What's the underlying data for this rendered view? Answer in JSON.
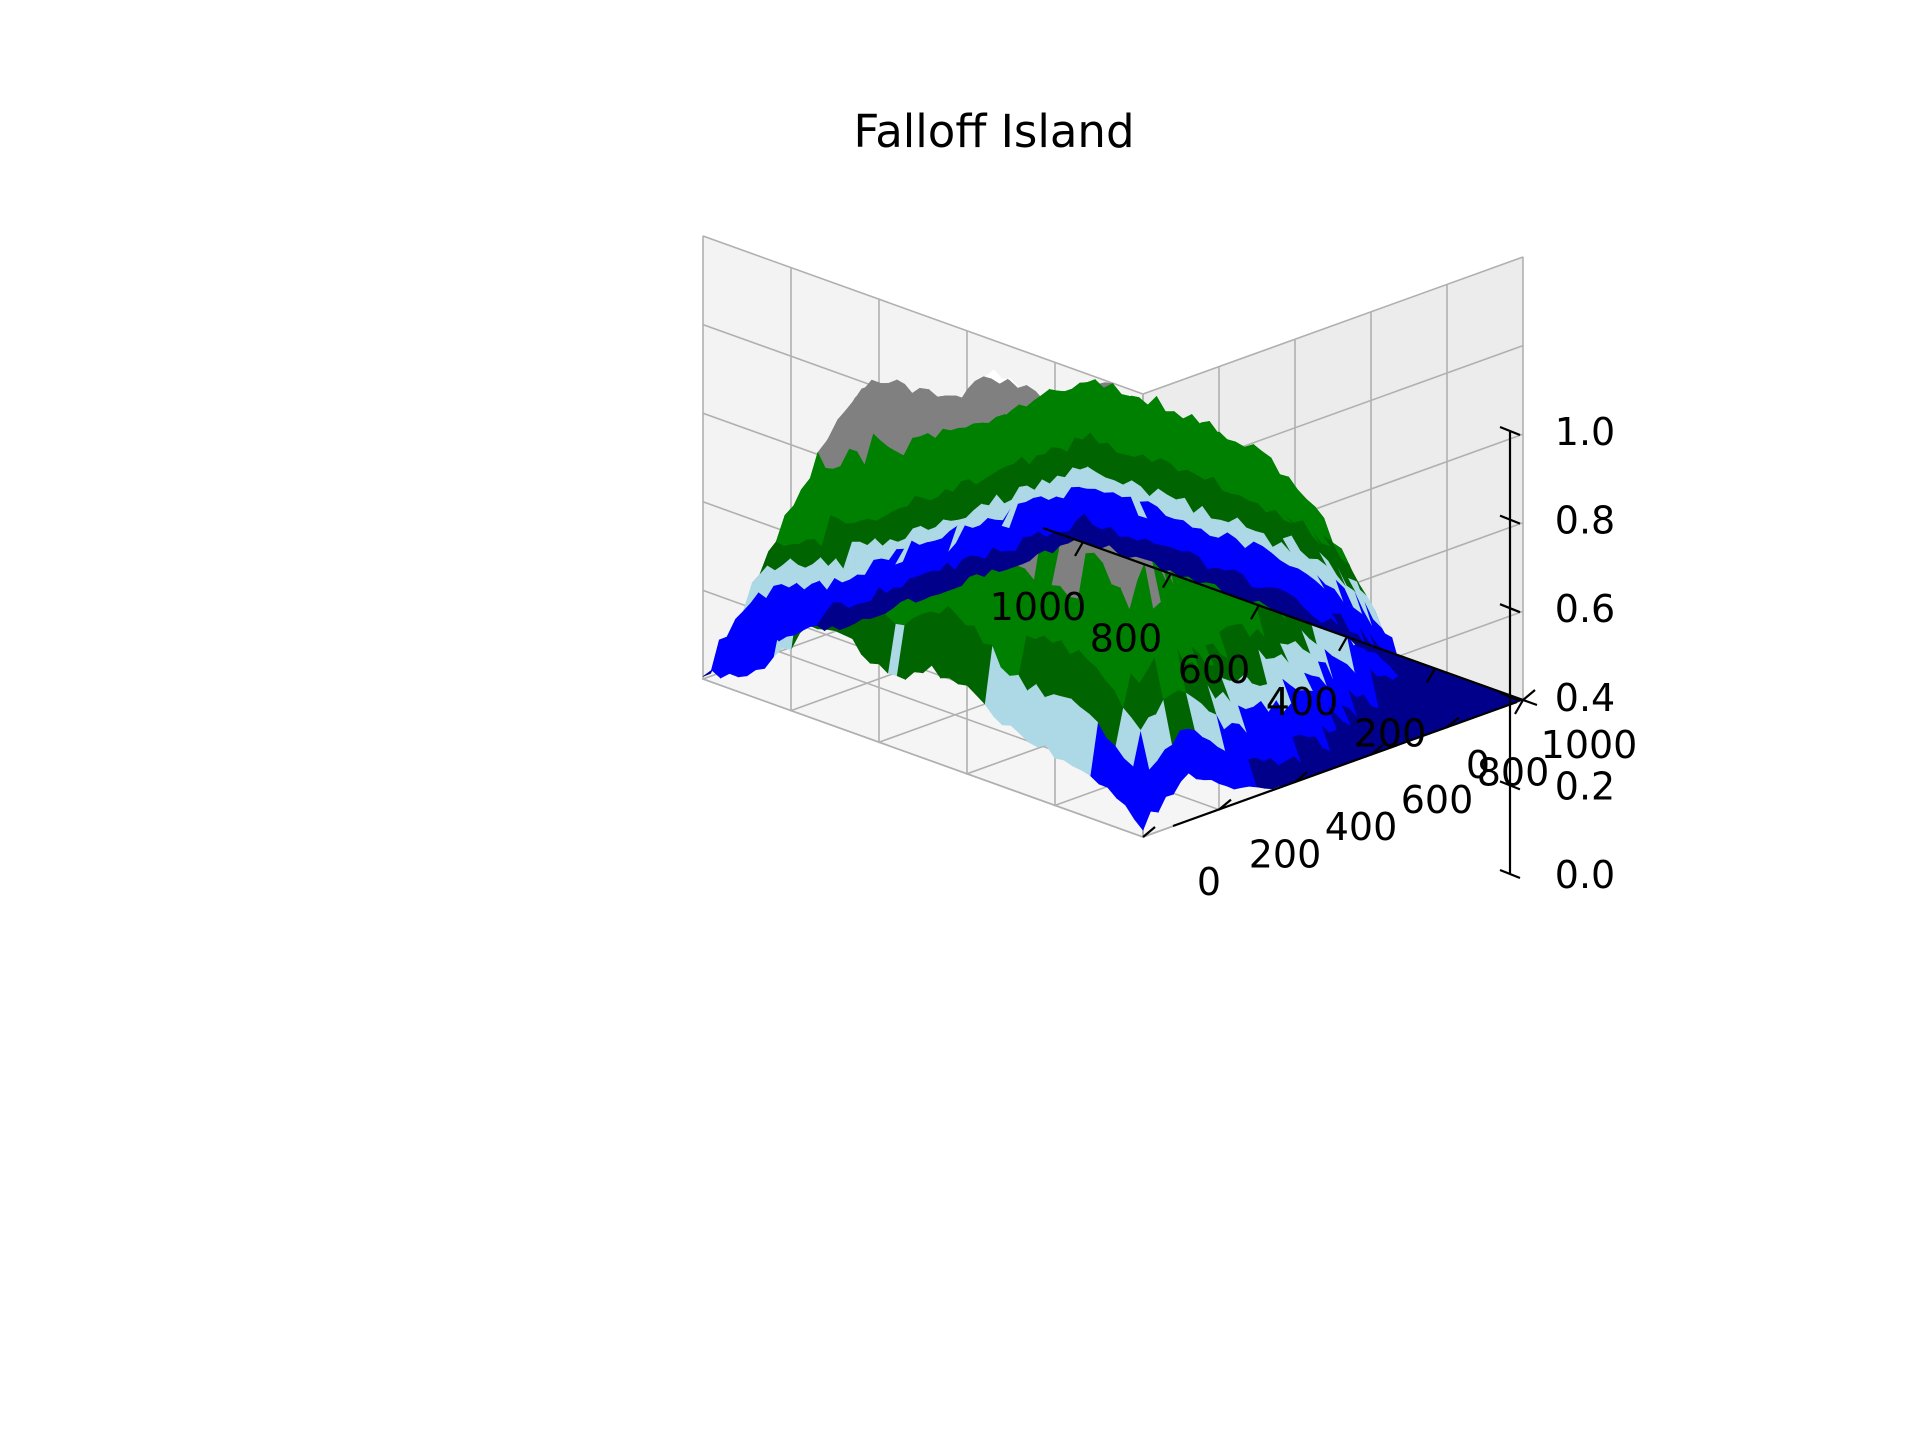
{
  "chart_data": {
    "type": "surface3d",
    "title": "Falloff Island",
    "xlabel": "",
    "ylabel": "",
    "zlabel": "",
    "x_ticks": [
      "0",
      "200",
      "400",
      "600",
      "800",
      "1000"
    ],
    "y_ticks": [
      "0",
      "200",
      "400",
      "600",
      "800",
      "1000"
    ],
    "z_ticks": [
      "0.0",
      "0.2",
      "0.4",
      "0.6",
      "0.8",
      "1.0"
    ],
    "xlim": [
      0,
      1000
    ],
    "ylim": [
      0,
      1000
    ],
    "zlim": [
      0,
      1
    ],
    "grid": true,
    "colormap_bands": [
      {
        "max_height": 0.05,
        "color": "#00008b"
      },
      {
        "max_height": 0.15,
        "color": "#0000ff"
      },
      {
        "max_height": 0.22,
        "color": "#add8e6"
      },
      {
        "max_height": 0.3,
        "color": "#006400"
      },
      {
        "max_height": 0.5,
        "color": "#008000"
      },
      {
        "max_height": 0.8,
        "color": "#808080"
      },
      {
        "max_height": 1.0,
        "color": "#ffffff"
      }
    ],
    "height_samples": {
      "corner_x0_y1000": 0.0,
      "corner_x1000_y1000": 0.05,
      "corner_x1000_y0": 0.12,
      "corner_x0_y0": 0.1,
      "peak_back_left": 0.83,
      "peak_back_center": 0.84,
      "peak_back_right": 0.72,
      "plateau": 0.5
    }
  }
}
